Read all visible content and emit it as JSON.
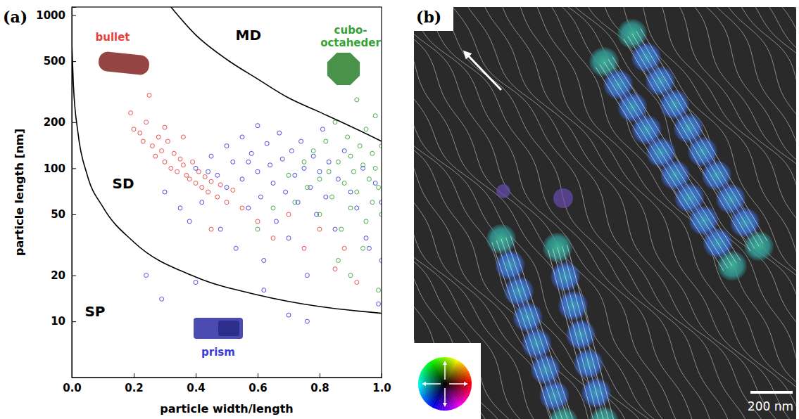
{
  "chart_data": [
    {
      "type": "scatter",
      "panel": "(a)",
      "x_label": "particle width/length",
      "y_label": "particle length [nm]",
      "xlim": [
        0,
        1
      ],
      "ylim": [
        4.3,
        1130
      ],
      "log": "y",
      "grid": false,
      "xticks": [
        {
          "value": 0,
          "label": "0.0"
        },
        {
          "value": 0.2,
          "label": "0.2"
        },
        {
          "value": 0.4,
          "label": "0.4"
        },
        {
          "value": 0.6,
          "label": "0.6"
        },
        {
          "value": 0.8,
          "label": "0.8"
        },
        {
          "value": 1,
          "label": "1.0"
        }
      ],
      "yticks": [
        10,
        20,
        50,
        100,
        200,
        500,
        1000
      ],
      "annotations": [
        "MD",
        "SD",
        "SP"
      ],
      "series": [
        {
          "name": "bullet",
          "color": "#e8413c",
          "marker": "circle",
          "x": [
            0.19,
            0.2,
            0.22,
            0.24,
            0.25,
            0.23,
            0.26,
            0.28,
            0.27,
            0.29,
            0.3,
            0.31,
            0.32,
            0.33,
            0.34,
            0.35,
            0.36,
            0.37,
            0.38,
            0.39,
            0.4,
            0.41,
            0.42,
            0.43,
            0.44,
            0.45,
            0.47,
            0.48,
            0.5,
            0.52,
            0.36,
            0.3,
            0.55,
            0.6,
            0.45,
            0.65,
            0.75,
            0.85,
            0.92,
            0.7,
            0.8,
            0.88
          ],
          "values": [
            230,
            180,
            170,
            200,
            300,
            150,
            140,
            160,
            120,
            130,
            110,
            150,
            100,
            125,
            95,
            115,
            105,
            90,
            85,
            110,
            80,
            95,
            75,
            88,
            70,
            82,
            65,
            78,
            60,
            72,
            160,
            185,
            55,
            45,
            40,
            35,
            30,
            22,
            18,
            50,
            40,
            30
          ]
        },
        {
          "name": "prism",
          "color": "#3b3bd9",
          "marker": "circle",
          "x": [
            0.3,
            0.35,
            0.38,
            0.4,
            0.42,
            0.45,
            0.47,
            0.48,
            0.5,
            0.5,
            0.52,
            0.53,
            0.55,
            0.55,
            0.57,
            0.58,
            0.6,
            0.6,
            0.61,
            0.62,
            0.63,
            0.64,
            0.65,
            0.66,
            0.67,
            0.68,
            0.69,
            0.7,
            0.71,
            0.72,
            0.73,
            0.74,
            0.75,
            0.76,
            0.77,
            0.78,
            0.79,
            0.8,
            0.81,
            0.82,
            0.83,
            0.85,
            0.86,
            0.88,
            0.9,
            0.92,
            0.94,
            0.96,
            0.98,
            1.0,
            1.0,
            0.24,
            0.29,
            0.4,
            0.7,
            0.76,
            0.62,
            0.95,
            0.99,
            0.57,
            0.44
          ],
          "values": [
            70,
            55,
            45,
            100,
            60,
            120,
            90,
            40,
            140,
            75,
            110,
            30,
            160,
            85,
            55,
            125,
            190,
            95,
            65,
            25,
            145,
            105,
            80,
            45,
            170,
            115,
            70,
            35,
            130,
            90,
            60,
            150,
            100,
            20,
            75,
            120,
            50,
            95,
            180,
            65,
            110,
            40,
            85,
            130,
            70,
            55,
            100,
            30,
            80,
            60,
            25,
            20,
            14,
            18,
            11,
            10,
            16,
            35,
            13,
            110,
            95
          ]
        },
        {
          "name": "cubo-octaheder",
          "color": "#36a336",
          "marker": "circle",
          "x": [
            0.7,
            0.72,
            0.75,
            0.76,
            0.78,
            0.8,
            0.8,
            0.82,
            0.83,
            0.84,
            0.85,
            0.86,
            0.87,
            0.88,
            0.89,
            0.9,
            0.9,
            0.91,
            0.92,
            0.92,
            0.93,
            0.94,
            0.95,
            0.95,
            0.96,
            0.97,
            0.97,
            0.98,
            0.98,
            0.99,
            1.0,
            1.0,
            0.86,
            0.9,
            0.94,
            0.99,
            0.6,
            0.65
          ],
          "values": [
            90,
            60,
            110,
            75,
            130,
            85,
            50,
            150,
            95,
            65,
            200,
            110,
            40,
            80,
            160,
            120,
            55,
            95,
            280,
            70,
            140,
            105,
            45,
            180,
            85,
            125,
            60,
            220,
            100,
            75,
            140,
            50,
            25,
            20,
            30,
            16,
            40,
            55
          ]
        },
        {
          "type": "line",
          "color": "#000000",
          "line_style": "solid",
          "x": [
            0,
            0.005,
            0.02,
            0.05,
            0.1,
            0.2,
            0.4,
            0.6,
            0.8,
            1.0
          ],
          "values": [
            670,
            355,
            170,
            90,
            56,
            33,
            19.5,
            14.9,
            12.5,
            11.3
          ]
        },
        {
          "type": "line",
          "color": "#000000",
          "line_style": "solid",
          "x": [
            0.32,
            0.4,
            0.5,
            0.6,
            0.7,
            0.8,
            0.9,
            1.0
          ],
          "values": [
            1130,
            743,
            514,
            383,
            288,
            233,
            188,
            150
          ]
        }
      ]
    },
    {
      "type": "image",
      "panel": "(b)",
      "scale_bar_label": "200 nm"
    }
  ]
}
